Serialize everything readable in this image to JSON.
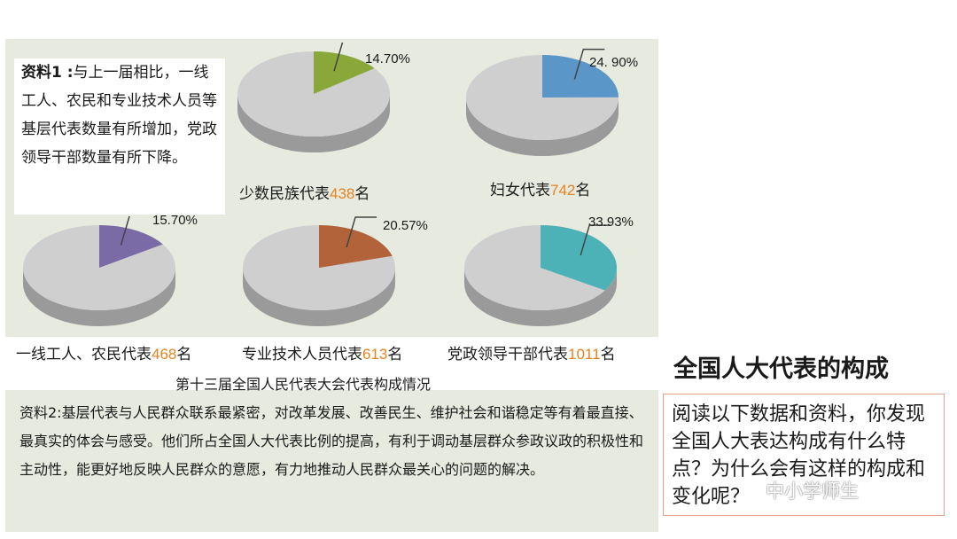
{
  "material1": {
    "label": "资料1 :",
    "text": "与上一届相比，一线工人、农民和专业技术人员等基层代表数量有所增加，党政领导干部数量有所下降。"
  },
  "pies": [
    {
      "name": "少数民族代表",
      "count": "438",
      "unit": "名",
      "percent_label": "14.70%",
      "percent": 14.7,
      "color": "#8aa83a"
    },
    {
      "name": "妇女代表",
      "count": "742",
      "unit": "名",
      "percent_label": "24. 90%",
      "percent": 24.9,
      "color": "#5a96c8"
    },
    {
      "name": "一线工人、农民代表",
      "count": "468",
      "unit": "名",
      "percent_label": "15.70%",
      "percent": 15.7,
      "color": "#7a6aa6"
    },
    {
      "name": "专业技术人员代表",
      "count": "613",
      "unit": "名",
      "percent_label": "20.57%",
      "percent": 20.57,
      "color": "#b2633a"
    },
    {
      "name": "党政领导干部代表",
      "count": "1011",
      "unit": "名",
      "percent_label": "33.93%",
      "percent": 33.93,
      "color": "#4cb2b8"
    }
  ],
  "caption": "第十三届全国人民代表大会代表构成情况",
  "material2": "资料2:基层代表与人民群众联系最紧密，对改革发展、改善民生、维护社会和谐稳定等有着最直接、最真实的体会与感受。他们所占全国人大代表比例的提高，有利于调动基层群众参政议政的积极性和主动性，能更好地反映人民群众的意愿，有力地推动人民群众最关心的问题的解决。",
  "title": "全国人大代表的构成",
  "question": "阅读以下数据和资料，你发现全国人大表达构成有什么特点？为什么会有这样的构成和变化呢？",
  "watermark": "中小学师生",
  "colors": {
    "number_highlight": "#e8821e",
    "pie_base": "#cfcfcf",
    "pie_side": "#9a9a9a",
    "panel": "#e7eadf"
  }
}
